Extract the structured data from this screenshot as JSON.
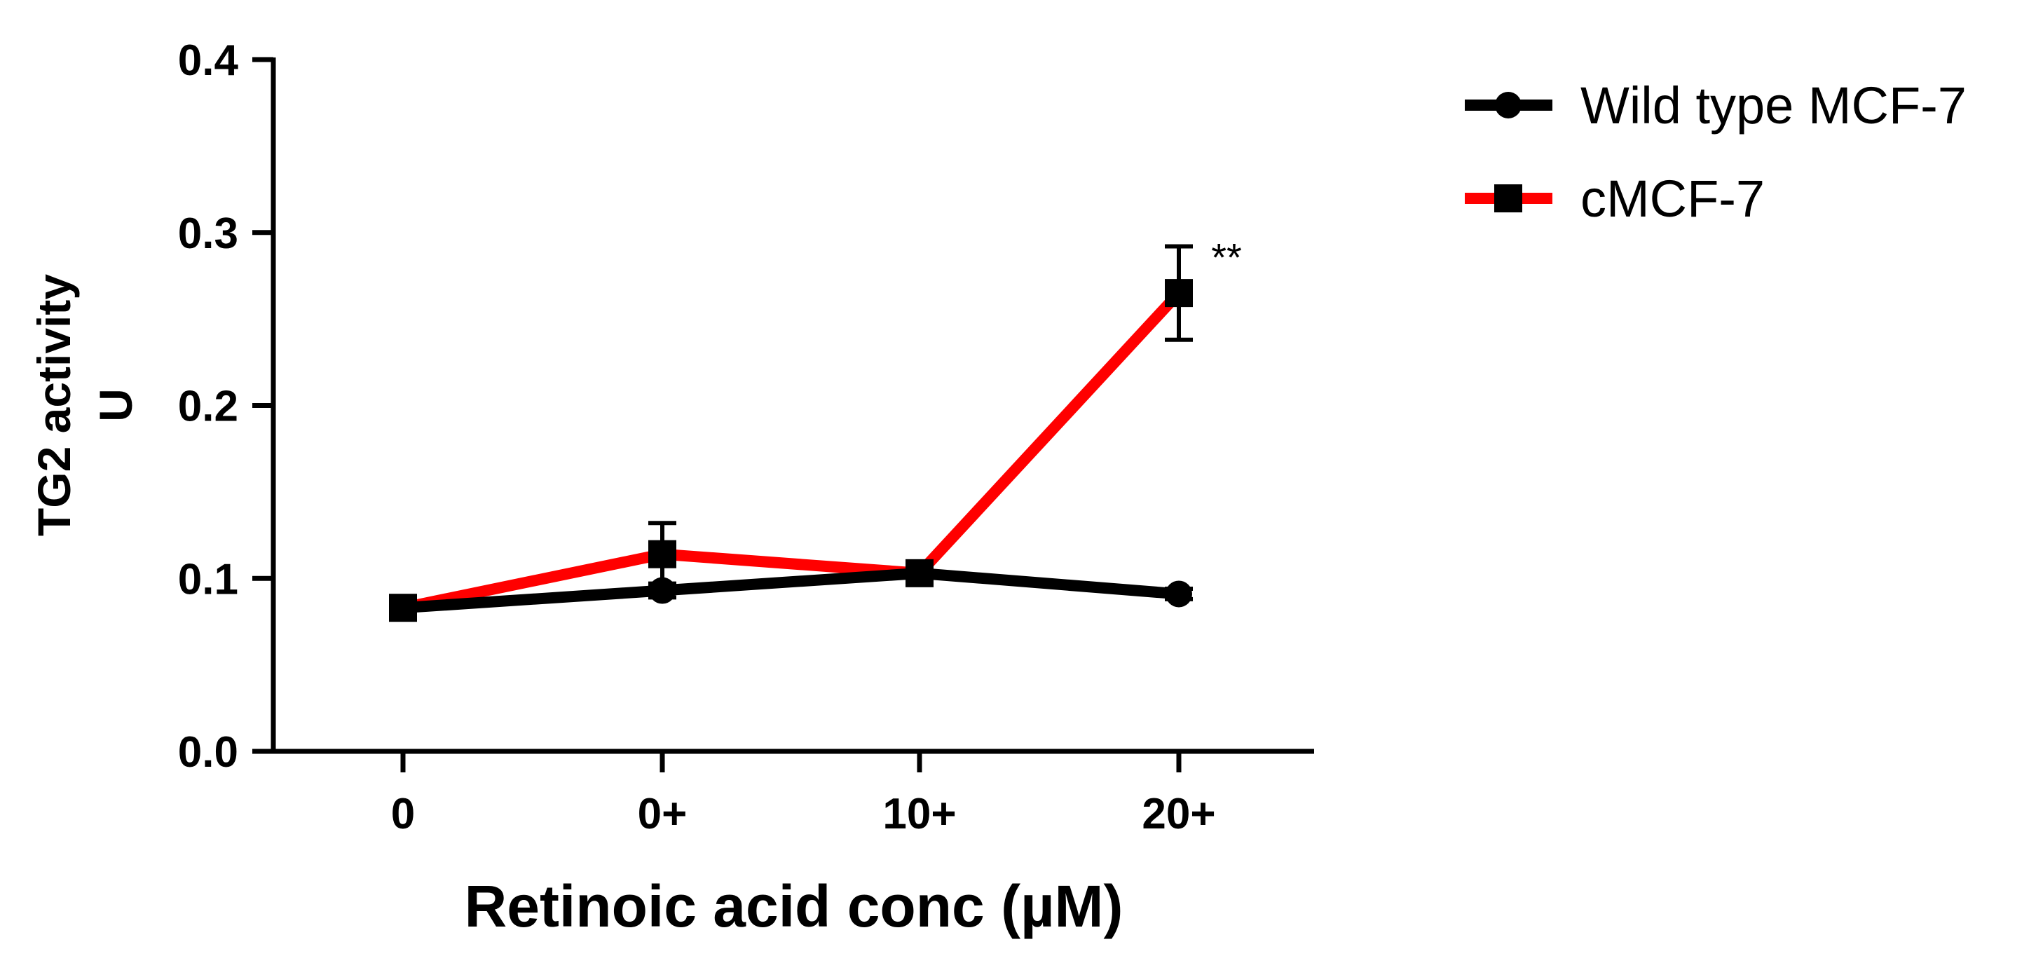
{
  "chart_data": {
    "type": "line",
    "categories": [
      "0",
      "0+",
      "10+",
      "20+"
    ],
    "xlabel": "Retinoic acid conc (µM)",
    "ylabel_lines": [
      "TG2 activity",
      "U"
    ],
    "ylim": [
      0,
      0.4
    ],
    "yticks": [
      "0.0",
      "0.1",
      "0.2",
      "0.3",
      "0.4"
    ],
    "grid": false,
    "legend_position": "top-right",
    "series": [
      {
        "name": "cMCF-7",
        "color": "#ff0000",
        "marker": "square",
        "values": [
          0.083,
          0.114,
          0.103,
          0.265
        ],
        "errors": [
          0.003,
          0.018,
          0.004,
          0.027
        ]
      },
      {
        "name": "Wild type MCF-7",
        "color": "#000000",
        "marker": "circle",
        "values": [
          0.083,
          0.093,
          0.103,
          0.091
        ],
        "errors": [
          0.002,
          0.004,
          0.004,
          0.003
        ]
      }
    ],
    "annotations": [
      {
        "text": "**",
        "category": "20+",
        "value": 0.29
      }
    ]
  }
}
